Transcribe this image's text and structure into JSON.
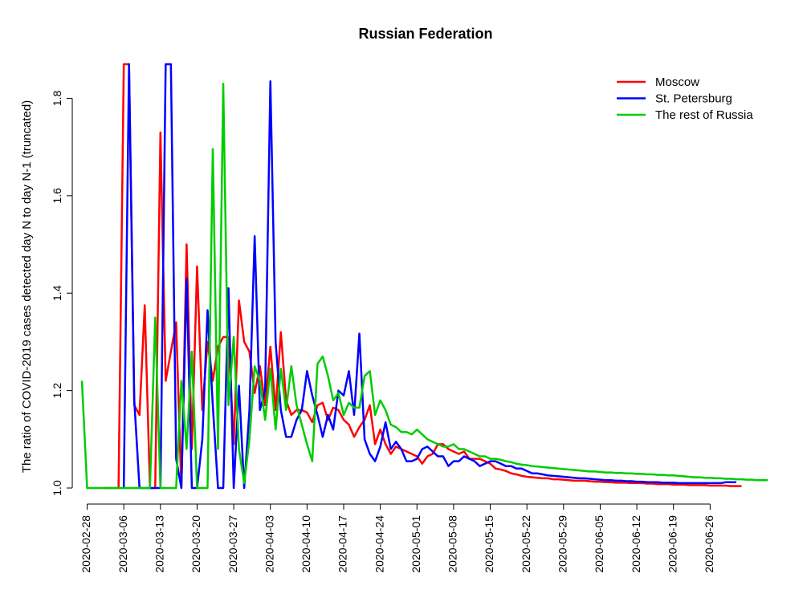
{
  "chart_data": {
    "type": "line",
    "title": "Russian Federation",
    "xlabel": "",
    "ylabel": "The ratio of COVID-2019 cases detected day N to day N-1 (truncated)",
    "x_start": "2020-02-27",
    "xlim": [
      "2020-02-27",
      "2020-07-03"
    ],
    "ylim": [
      1.0,
      1.87
    ],
    "x_ticks": [
      "2020-02-28",
      "2020-03-06",
      "2020-03-13",
      "2020-03-20",
      "2020-03-27",
      "2020-04-03",
      "2020-04-10",
      "2020-04-17",
      "2020-04-24",
      "2020-05-01",
      "2020-05-08",
      "2020-05-15",
      "2020-05-22",
      "2020-05-29",
      "2020-06-05",
      "2020-06-12",
      "2020-06-19",
      "2020-06-26"
    ],
    "y_ticks": [
      "1.0",
      "1.2",
      "1.4",
      "1.6",
      "1.8"
    ],
    "y_tick_values": [
      1.0,
      1.2,
      1.4,
      1.6,
      1.8
    ],
    "grid": false,
    "legend_position": "top-right",
    "series": [
      {
        "name": "Moscow",
        "color": "#ff0000",
        "x_start": "2020-03-02",
        "values": [
          1.0,
          1.0,
          1.0,
          1.0,
          1.87,
          1.87,
          1.17,
          1.15,
          1.375,
          1.0,
          1.0,
          1.73,
          1.22,
          1.28,
          1.34,
          1.0,
          1.5,
          1.08,
          1.455,
          1.16,
          1.3,
          1.22,
          1.29,
          1.31,
          1.31,
          1.09,
          1.385,
          1.3,
          1.28,
          1.195,
          1.25,
          1.17,
          1.29,
          1.16,
          1.32,
          1.18,
          1.15,
          1.16,
          1.16,
          1.155,
          1.135,
          1.17,
          1.175,
          1.14,
          1.165,
          1.16,
          1.14,
          1.13,
          1.105,
          1.125,
          1.14,
          1.17,
          1.09,
          1.12,
          1.09,
          1.07,
          1.085,
          1.08,
          1.075,
          1.07,
          1.065,
          1.05,
          1.065,
          1.07,
          1.09,
          1.09,
          1.08,
          1.075,
          1.07,
          1.075,
          1.06,
          1.06,
          1.06,
          1.055,
          1.05,
          1.04,
          1.038,
          1.035,
          1.03,
          1.028,
          1.025,
          1.023,
          1.022,
          1.021,
          1.02,
          1.02,
          1.018,
          1.018,
          1.017,
          1.016,
          1.015,
          1.015,
          1.015,
          1.014,
          1.013,
          1.013,
          1.012,
          1.012,
          1.011,
          1.011,
          1.011,
          1.01,
          1.01,
          1.01,
          1.009,
          1.009,
          1.008,
          1.008,
          1.008,
          1.007,
          1.007,
          1.007,
          1.006,
          1.006,
          1.006,
          1.006,
          1.005,
          1.005,
          1.005,
          1.005,
          1.004,
          1.004,
          1.004
        ]
      },
      {
        "name": "St. Petersburg",
        "color": "#0000ff",
        "x_start": "2020-03-06",
        "values": [
          1.0,
          1.87,
          1.18,
          1.0,
          1.0,
          1.0,
          1.0,
          1.0,
          1.87,
          1.87,
          1.06,
          1.0,
          1.43,
          1.0,
          1.0,
          1.1,
          1.365,
          1.17,
          1.0,
          1.0,
          1.41,
          1.0,
          1.21,
          1.0,
          1.16,
          1.517,
          1.16,
          1.2,
          1.835,
          1.3,
          1.16,
          1.105,
          1.105,
          1.14,
          1.16,
          1.24,
          1.19,
          1.15,
          1.105,
          1.15,
          1.12,
          1.2,
          1.19,
          1.24,
          1.15,
          1.317,
          1.1,
          1.07,
          1.055,
          1.085,
          1.135,
          1.08,
          1.095,
          1.08,
          1.055,
          1.055,
          1.06,
          1.08,
          1.085,
          1.075,
          1.065,
          1.065,
          1.045,
          1.055,
          1.055,
          1.065,
          1.06,
          1.055,
          1.045,
          1.05,
          1.055,
          1.055,
          1.05,
          1.045,
          1.045,
          1.04,
          1.04,
          1.035,
          1.03,
          1.03,
          1.028,
          1.026,
          1.025,
          1.024,
          1.023,
          1.022,
          1.021,
          1.02,
          1.02,
          1.019,
          1.018,
          1.017,
          1.016,
          1.016,
          1.015,
          1.015,
          1.014,
          1.014,
          1.013,
          1.013,
          1.012,
          1.012,
          1.012,
          1.011,
          1.011,
          1.011,
          1.01,
          1.01,
          1.01,
          1.01,
          1.01,
          1.01,
          1.01,
          1.01,
          1.01,
          1.012,
          1.012,
          1.012
        ]
      },
      {
        "name": "The rest of Russia",
        "color": "#00cc00",
        "x_start": "2020-02-27",
        "values": [
          1.22,
          1.0,
          1.0,
          1.0,
          1.0,
          1.0,
          1.0,
          1.0,
          1.0,
          1.0,
          1.0,
          1.0,
          1.0,
          1.0,
          1.35,
          1.0,
          1.0,
          1.0,
          1.0,
          1.22,
          1.08,
          1.28,
          1.0,
          1.0,
          1.0,
          1.696,
          1.08,
          1.83,
          1.17,
          1.31,
          1.08,
          1.01,
          1.1,
          1.25,
          1.22,
          1.14,
          1.245,
          1.12,
          1.245,
          1.16,
          1.25,
          1.17,
          1.13,
          1.09,
          1.055,
          1.255,
          1.27,
          1.23,
          1.18,
          1.195,
          1.15,
          1.175,
          1.165,
          1.165,
          1.23,
          1.24,
          1.15,
          1.18,
          1.16,
          1.13,
          1.125,
          1.115,
          1.115,
          1.11,
          1.12,
          1.11,
          1.1,
          1.095,
          1.09,
          1.085,
          1.085,
          1.09,
          1.08,
          1.08,
          1.075,
          1.07,
          1.065,
          1.065,
          1.06,
          1.06,
          1.058,
          1.055,
          1.053,
          1.05,
          1.048,
          1.047,
          1.045,
          1.044,
          1.043,
          1.042,
          1.041,
          1.04,
          1.039,
          1.038,
          1.037,
          1.036,
          1.035,
          1.034,
          1.034,
          1.033,
          1.032,
          1.032,
          1.031,
          1.031,
          1.03,
          1.03,
          1.029,
          1.029,
          1.028,
          1.028,
          1.027,
          1.027,
          1.026,
          1.026,
          1.025,
          1.024,
          1.023,
          1.022,
          1.022,
          1.021,
          1.021,
          1.02,
          1.02,
          1.019,
          1.019,
          1.018,
          1.018,
          1.017,
          1.017,
          1.016,
          1.016,
          1.016
        ]
      }
    ]
  }
}
